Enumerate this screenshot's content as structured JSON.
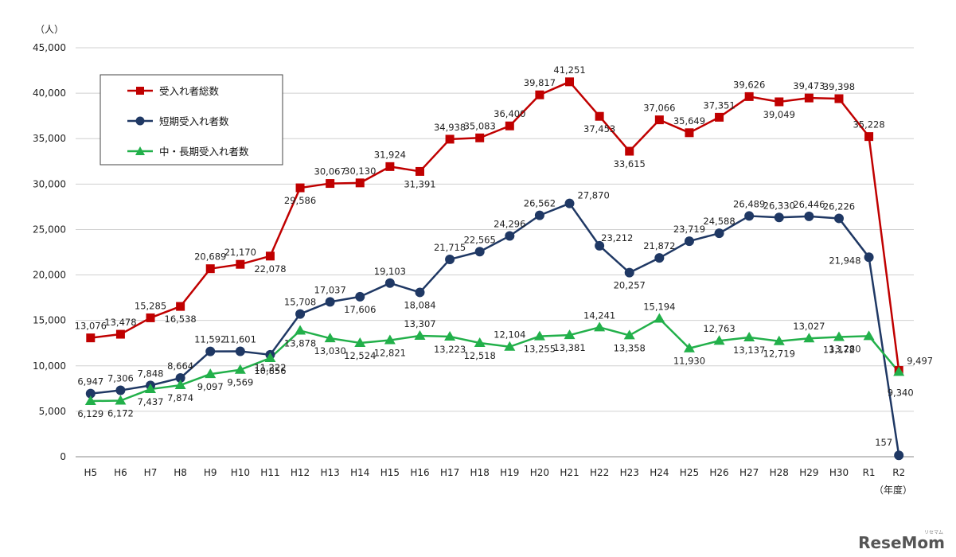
{
  "chart_data": {
    "type": "line",
    "y_unit": "（人）",
    "x_unit": "（年度）",
    "ylim": [
      0,
      45000
    ],
    "yticks": [
      0,
      5000,
      10000,
      15000,
      20000,
      25000,
      30000,
      35000,
      40000,
      45000
    ],
    "ytick_labels": [
      "0",
      "5,000",
      "10,000",
      "15,000",
      "20,000",
      "25,000",
      "30,000",
      "35,000",
      "40,000",
      "45,000"
    ],
    "grid": "horizontal",
    "legend_position": "top-left",
    "categories": [
      "H5",
      "H6",
      "H7",
      "H8",
      "H9",
      "H10",
      "H11",
      "H12",
      "H13",
      "H14",
      "H15",
      "H16",
      "H17",
      "H18",
      "H19",
      "H20",
      "H21",
      "H22",
      "H23",
      "H24",
      "H25",
      "H26",
      "H27",
      "H28",
      "H29",
      "H30",
      "R1",
      "R2"
    ],
    "series": [
      {
        "name": "受入れ者総数",
        "color": "#c00000",
        "marker": "square",
        "values": [
          13076,
          13478,
          15285,
          16538,
          20689,
          21170,
          22078,
          29586,
          30067,
          30130,
          31924,
          31391,
          34938,
          35083,
          36400,
          39817,
          41251,
          37453,
          33615,
          37066,
          35649,
          37351,
          39626,
          39049,
          39473,
          39398,
          35228,
          9497
        ],
        "labels": [
          "13,076",
          "13,478",
          "15,285",
          "16,538",
          "20,689",
          "21,170",
          "22,078",
          "29,586",
          "30,067",
          "30,130",
          "31,924",
          "31,391",
          "34,938",
          "35,083",
          "36,400",
          "39,817",
          "41,251",
          "37,453",
          "33,615",
          "37,066",
          "35,649",
          "37,351",
          "39,626",
          "39,049",
          "39,473",
          "39,398",
          "35,228",
          "9,497"
        ]
      },
      {
        "name": "短期受入れ者数",
        "color": "#1f3864",
        "marker": "circle",
        "values": [
          6947,
          7306,
          7848,
          8664,
          11592,
          11601,
          11222,
          15708,
          17037,
          17606,
          19103,
          18084,
          21715,
          22565,
          24296,
          26562,
          27870,
          23212,
          20257,
          21872,
          23719,
          24588,
          26489,
          26330,
          26446,
          26226,
          21948,
          157
        ],
        "labels": [
          "6,947",
          "7,306",
          "7,848",
          "8,664",
          "11,592",
          "11,601",
          "11,222",
          "15,708",
          "17,037",
          "17,606",
          "19,103",
          "18,084",
          "21,715",
          "22,565",
          "24,296",
          "26,562",
          "27,870",
          "23,212",
          "20,257",
          "21,872",
          "23,719",
          "24,588",
          "26,489",
          "26,330",
          "26,446",
          "26,226",
          "21,948",
          "157"
        ]
      },
      {
        "name": "中・長期受入れ者数",
        "color": "#22b04a",
        "marker": "triangle",
        "values": [
          6129,
          6172,
          7437,
          7874,
          9097,
          9569,
          10856,
          13878,
          13030,
          12524,
          12821,
          13307,
          13223,
          12518,
          12104,
          13255,
          13381,
          14241,
          13358,
          15194,
          11930,
          12763,
          13137,
          12719,
          13027,
          13172,
          13280,
          9340
        ],
        "labels": [
          "6,129",
          "6,172",
          "7,437",
          "7,874",
          "9,097",
          "9,569",
          "10,856",
          "13,878",
          "13,030",
          "12,524",
          "12,821",
          "13,307",
          "13,223",
          "12,518",
          "12,104",
          "13,255",
          "13,381",
          "14,241",
          "13,358",
          "15,194",
          "11,930",
          "12,763",
          "13,137",
          "12,719",
          "13,027",
          "13,172",
          "13,280",
          "9,340"
        ]
      }
    ]
  },
  "watermark": {
    "text": "ReseMom",
    "small": "リセマム"
  }
}
